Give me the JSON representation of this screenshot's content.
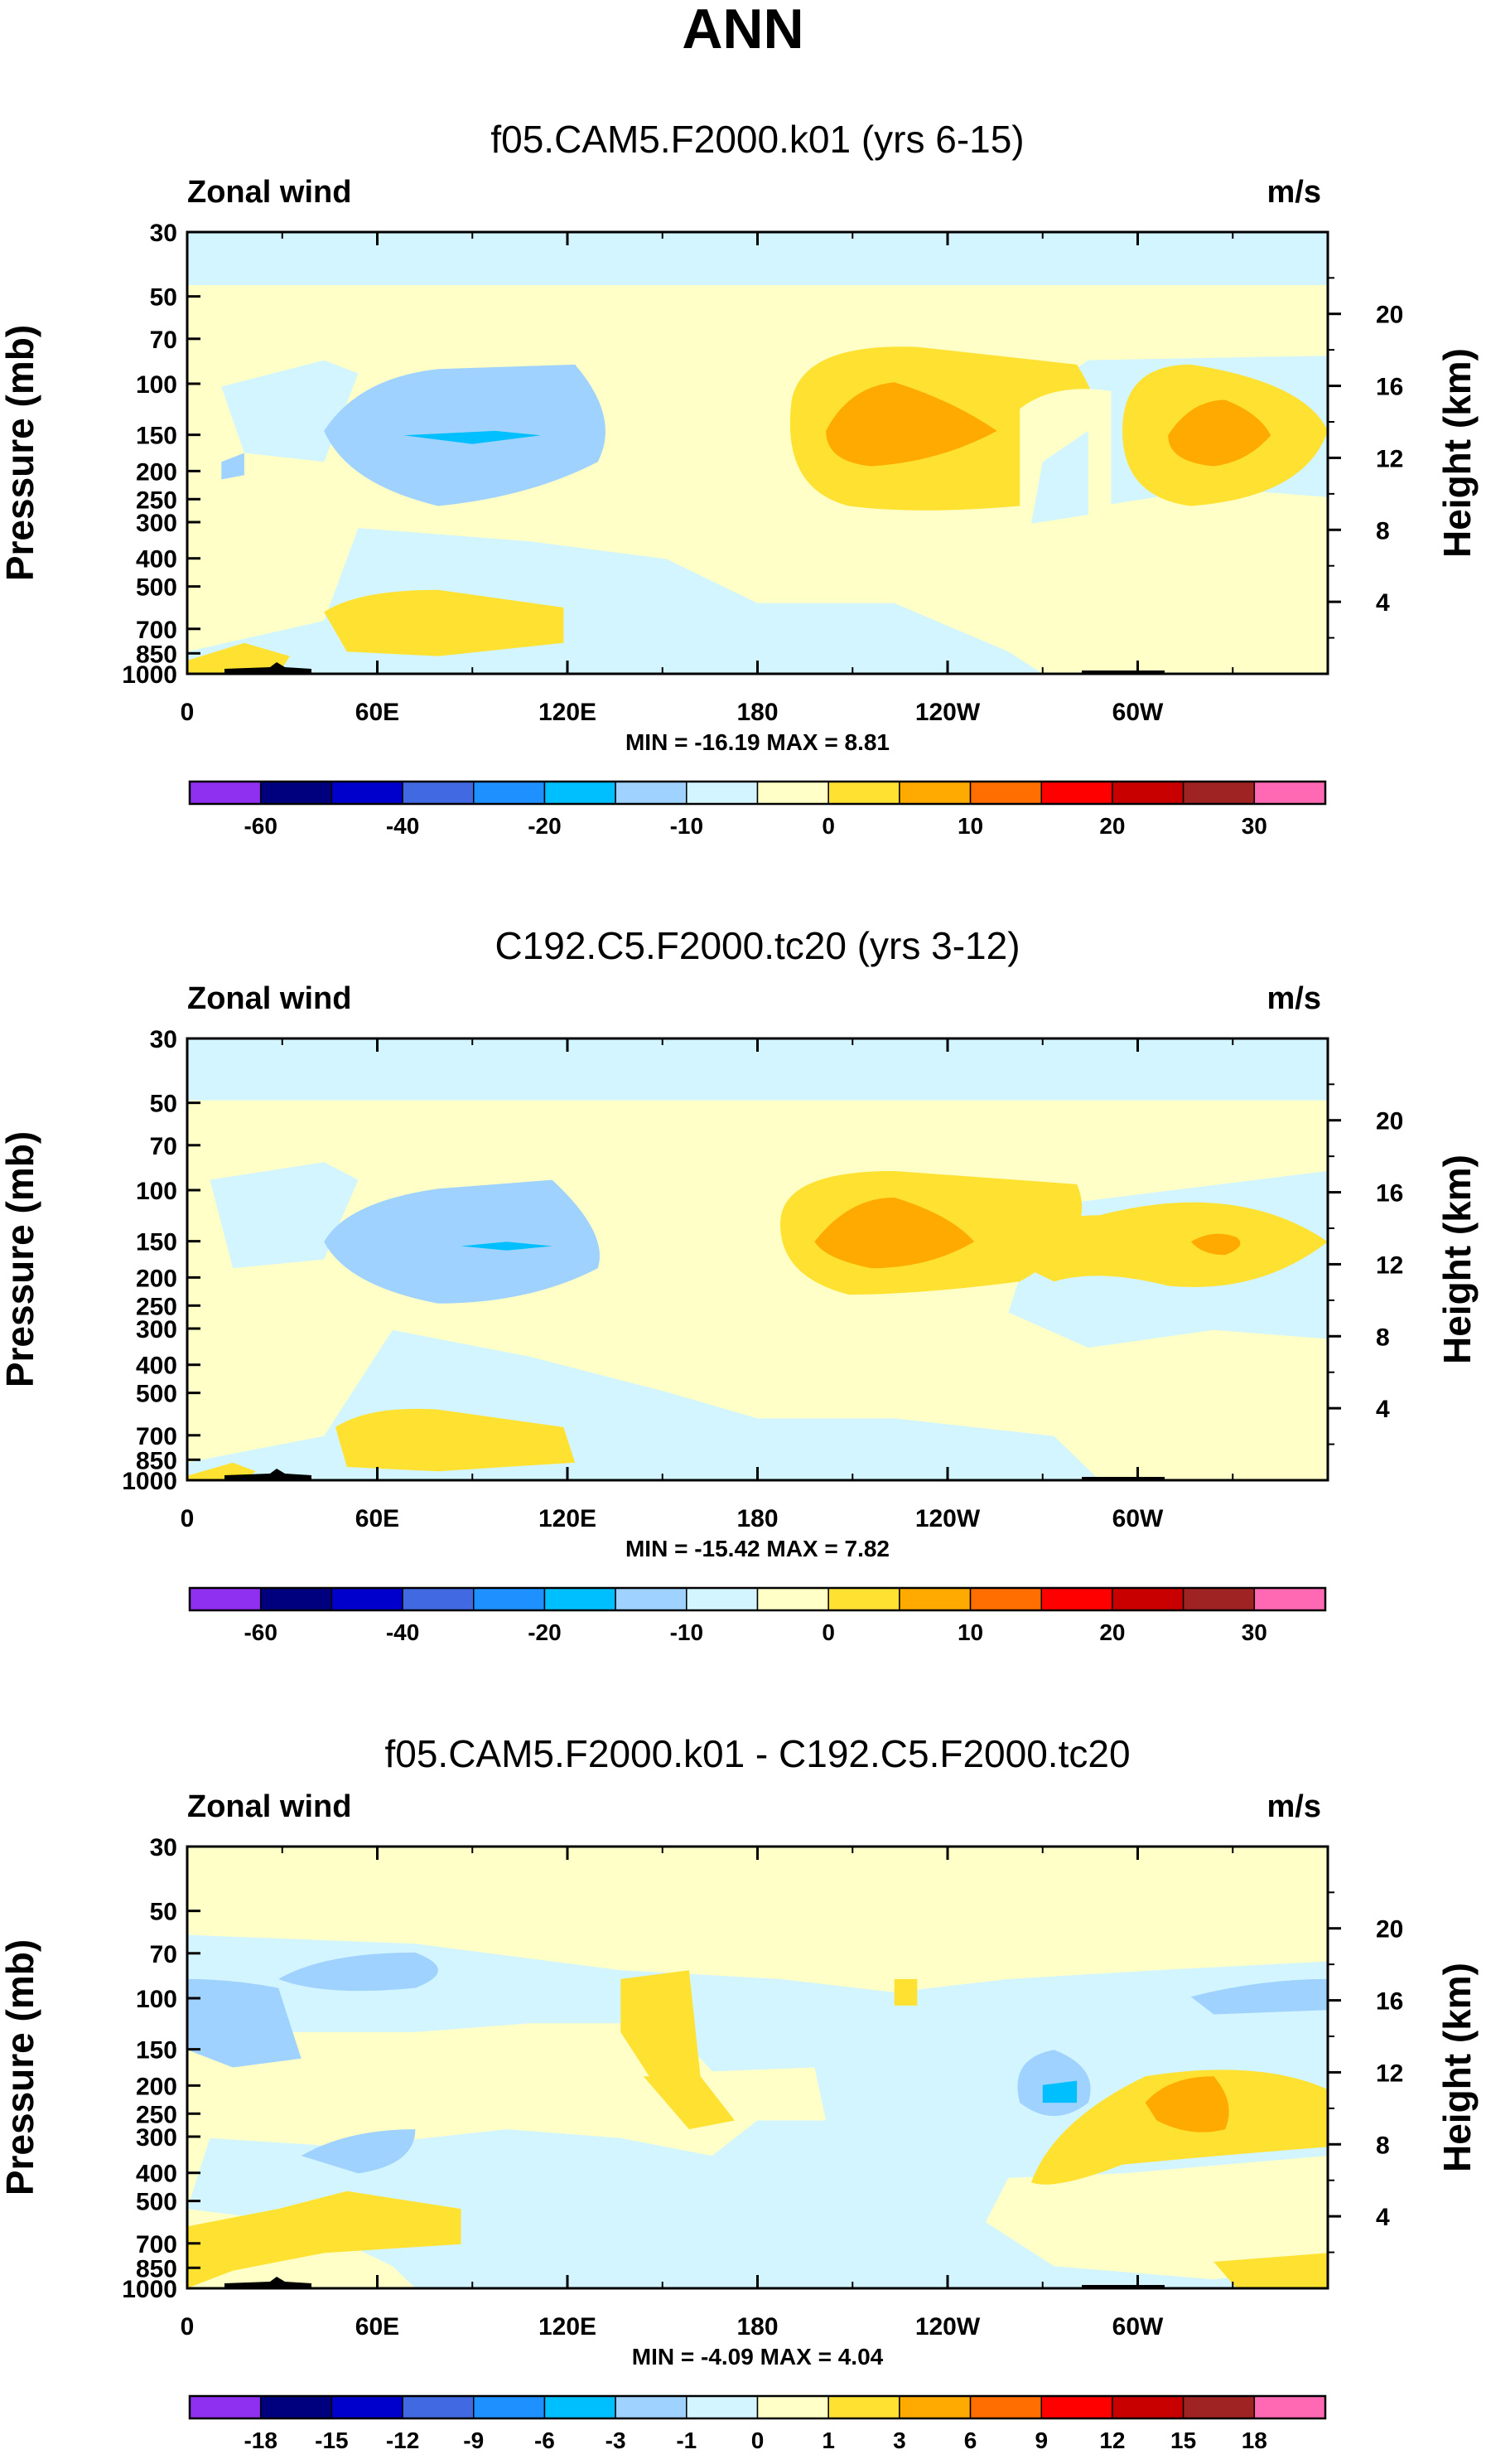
{
  "figure_title": "ANN",
  "chart_data": [
    {
      "type": "heatmap",
      "title": "f05.CAM5.F2000.k01 (yrs 6-15)",
      "left_label": "Zonal wind",
      "units": "m/s",
      "xlabel": "",
      "ylabel": "Pressure (mb)",
      "right_axis_label": "Height (km)",
      "x_ticks": [
        "0",
        "60E",
        "120E",
        "180",
        "120W",
        "60W"
      ],
      "y_ticks": [
        "30",
        "50",
        "70",
        "100",
        "150",
        "200",
        "250",
        "300",
        "400",
        "500",
        "700",
        "850",
        "1000"
      ],
      "right_ticks": [
        "20",
        "16",
        "12",
        "8",
        "4"
      ],
      "xlim": [
        0,
        360
      ],
      "ylim": [
        1000,
        30
      ],
      "stats": "MIN = -16.19  MAX =  8.81",
      "min": -16.19,
      "max": 8.81,
      "colorbar": {
        "labels": [
          "-60",
          "-40",
          "-20",
          "-10",
          "0",
          "10",
          "20",
          "30"
        ],
        "colors": [
          "#8f2ff0",
          "#00007f",
          "#0000cd",
          "#4169e1",
          "#1e90ff",
          "#00bfff",
          "#a0d2ff",
          "#d2f5ff",
          "#ffffc8",
          "#ffe132",
          "#ffaa00",
          "#ff6e00",
          "#ff0000",
          "#c80000",
          "#a02323",
          "#ff69b4"
        ]
      }
    },
    {
      "type": "heatmap",
      "title": "C192.C5.F2000.tc20 (yrs 3-12)",
      "left_label": "Zonal wind",
      "units": "m/s",
      "xlabel": "",
      "ylabel": "Pressure (mb)",
      "right_axis_label": "Height (km)",
      "x_ticks": [
        "0",
        "60E",
        "120E",
        "180",
        "120W",
        "60W"
      ],
      "y_ticks": [
        "30",
        "50",
        "70",
        "100",
        "150",
        "200",
        "250",
        "300",
        "400",
        "500",
        "700",
        "850",
        "1000"
      ],
      "right_ticks": [
        "20",
        "16",
        "12",
        "8",
        "4"
      ],
      "xlim": [
        0,
        360
      ],
      "ylim": [
        1000,
        30
      ],
      "stats": "MIN = -15.42  MAX =  7.82",
      "min": -15.42,
      "max": 7.82,
      "colorbar": {
        "labels": [
          "-60",
          "-40",
          "-20",
          "-10",
          "0",
          "10",
          "20",
          "30"
        ],
        "colors": [
          "#8f2ff0",
          "#00007f",
          "#0000cd",
          "#4169e1",
          "#1e90ff",
          "#00bfff",
          "#a0d2ff",
          "#d2f5ff",
          "#ffffc8",
          "#ffe132",
          "#ffaa00",
          "#ff6e00",
          "#ff0000",
          "#c80000",
          "#a02323",
          "#ff69b4"
        ]
      }
    },
    {
      "type": "heatmap",
      "title": "f05.CAM5.F2000.k01 - C192.C5.F2000.tc20",
      "left_label": "Zonal wind",
      "units": "m/s",
      "xlabel": "",
      "ylabel": "Pressure (mb)",
      "right_axis_label": "Height (km)",
      "x_ticks": [
        "0",
        "60E",
        "120E",
        "180",
        "120W",
        "60W"
      ],
      "y_ticks": [
        "30",
        "50",
        "70",
        "100",
        "150",
        "200",
        "250",
        "300",
        "400",
        "500",
        "700",
        "850",
        "1000"
      ],
      "right_ticks": [
        "20",
        "16",
        "12",
        "8",
        "4"
      ],
      "xlim": [
        0,
        360
      ],
      "ylim": [
        1000,
        30
      ],
      "stats": "MIN = -4.09  MAX =  4.04",
      "min": -4.09,
      "max": 4.04,
      "colorbar": {
        "labels": [
          "-18",
          "-15",
          "-12",
          "-9",
          "-6",
          "-3",
          "-1",
          "0",
          "1",
          "3",
          "6",
          "9",
          "12",
          "15",
          "18"
        ],
        "colors": [
          "#8f2ff0",
          "#00007f",
          "#0000cd",
          "#4169e1",
          "#1e90ff",
          "#00bfff",
          "#a0d2ff",
          "#d2f5ff",
          "#ffffc8",
          "#ffe132",
          "#ffaa00",
          "#ff6e00",
          "#ff0000",
          "#c80000",
          "#a02323",
          "#ff69b4"
        ]
      }
    }
  ]
}
